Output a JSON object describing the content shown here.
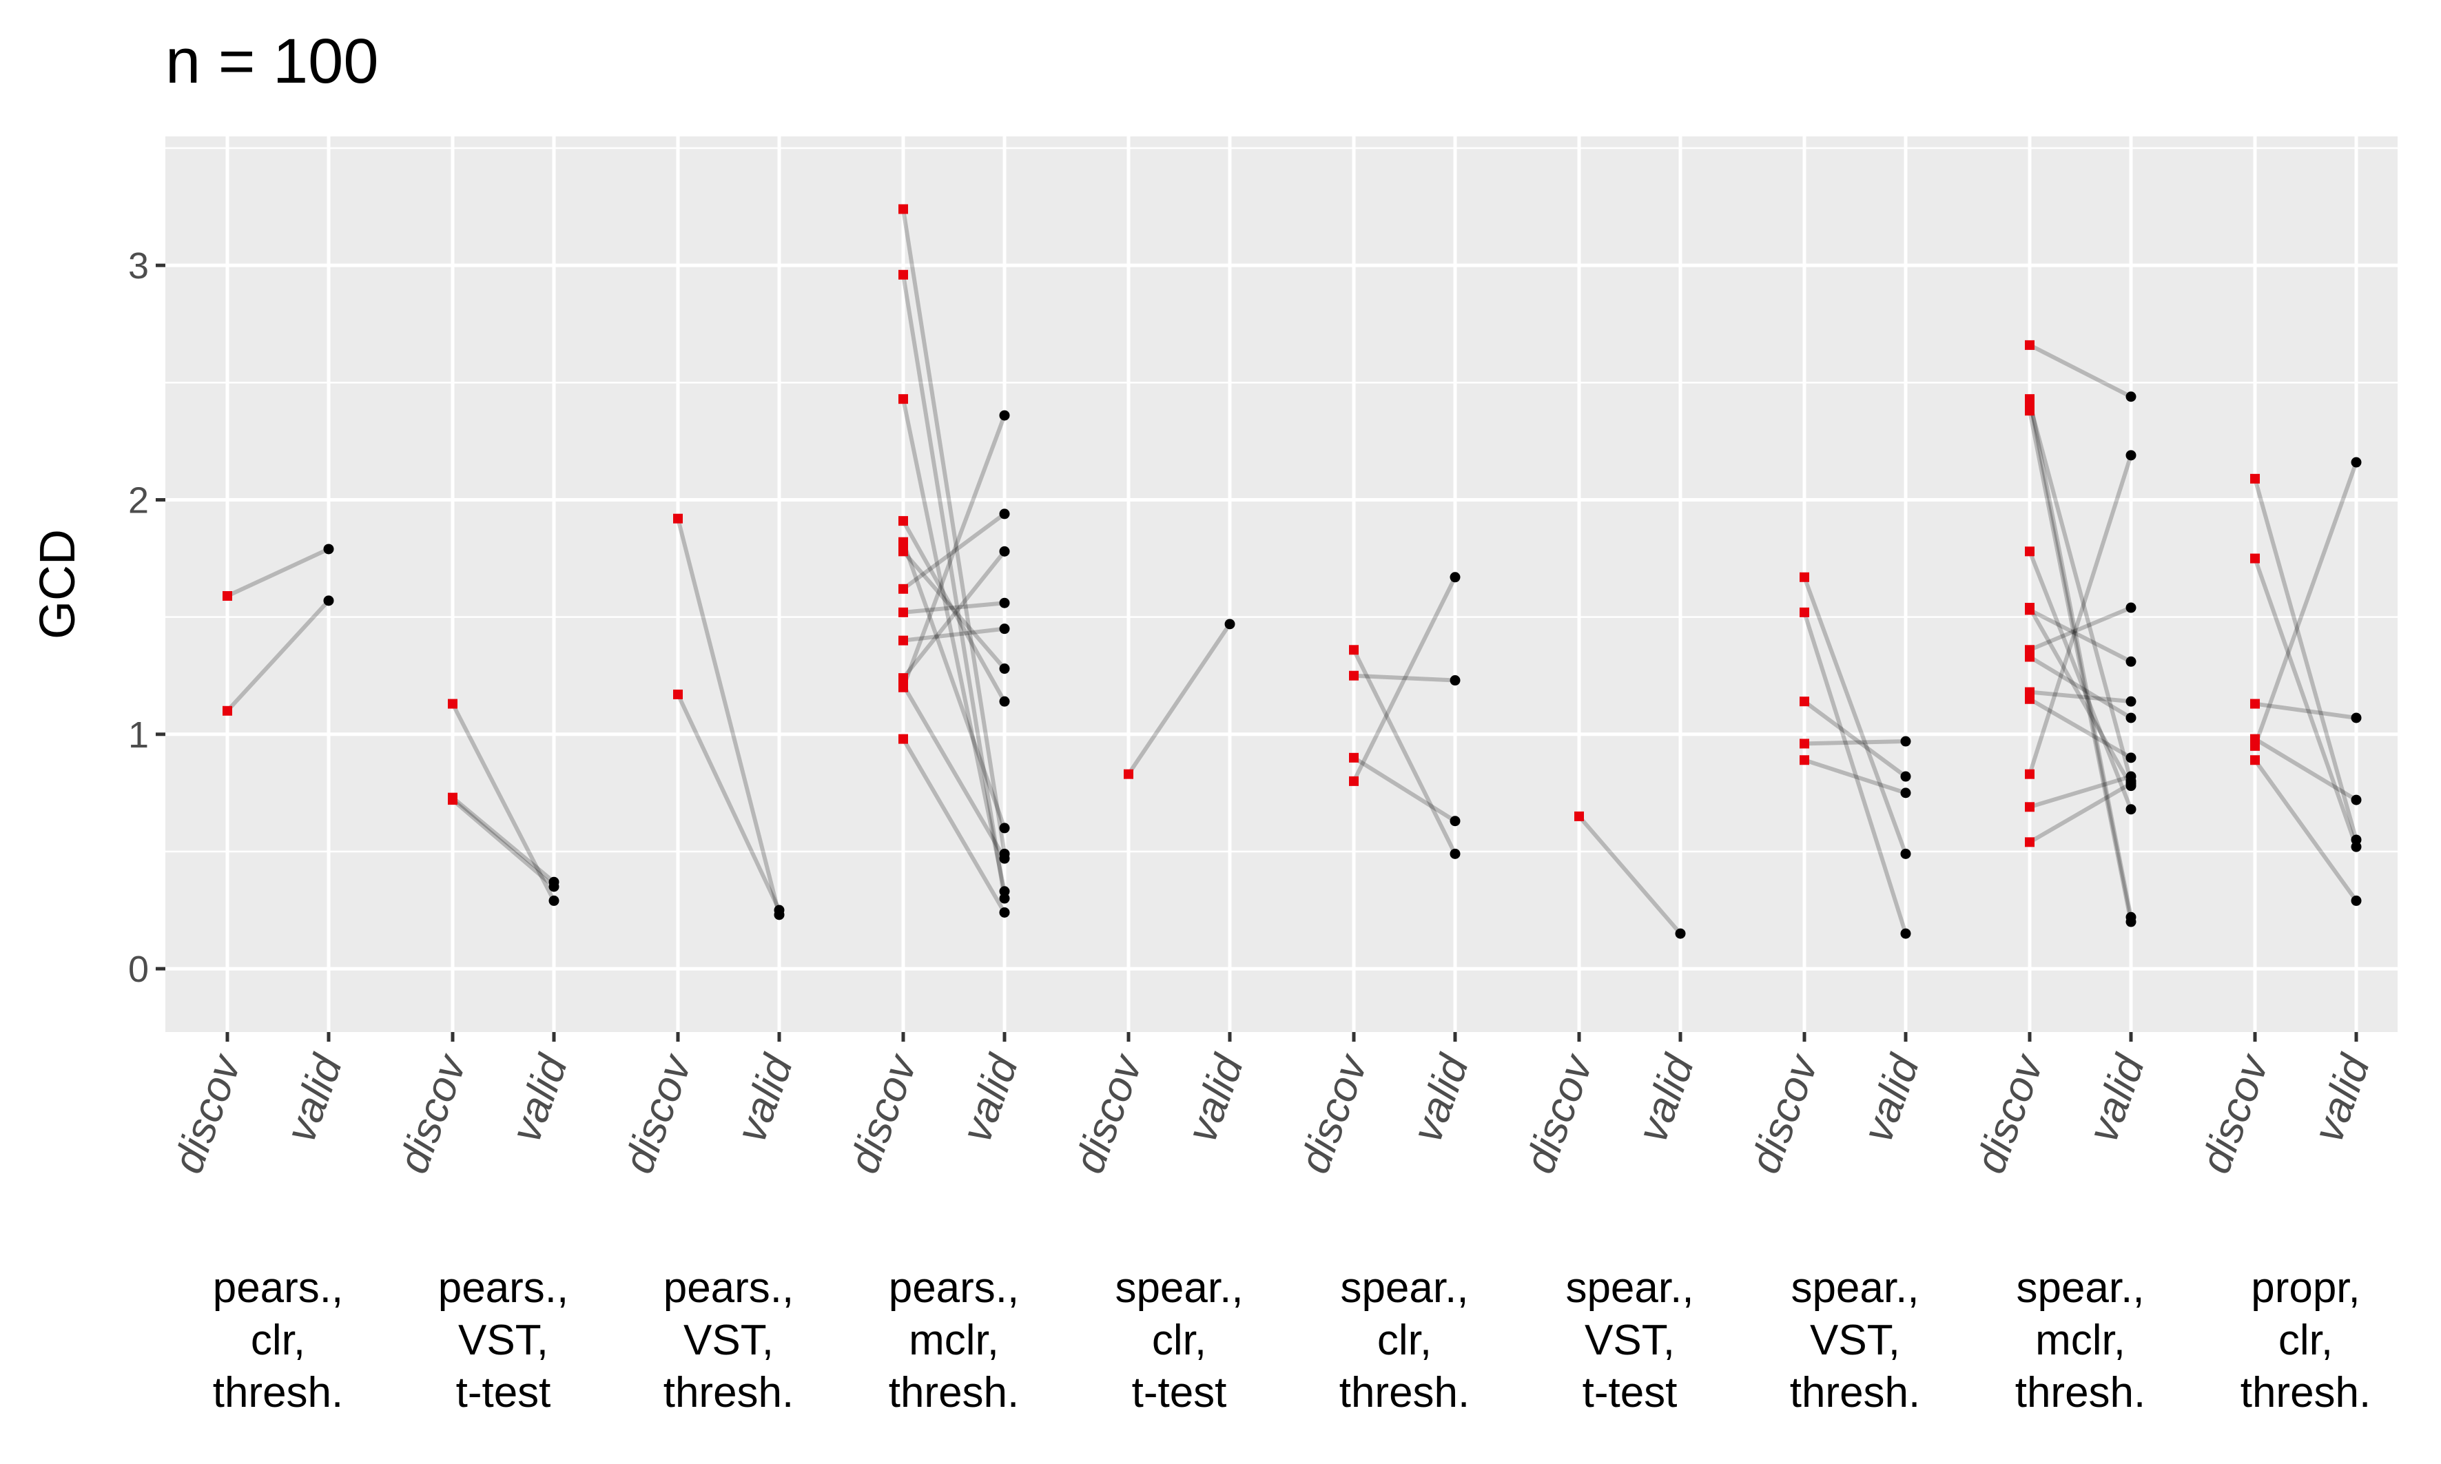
{
  "chart_data": {
    "type": "scatter",
    "title": "n = 100",
    "ylabel": "GCD",
    "xlabel": "",
    "ylim": [
      -0.27,
      3.55
    ],
    "y_ticks": [
      "0",
      "1",
      "2",
      "3"
    ],
    "grid": true,
    "point_colors": {
      "discov": "#e8000b",
      "valid": "#000000"
    },
    "groups": [
      {
        "label": [
          "pears.,",
          "clr,",
          "thresh."
        ],
        "x_ticks": [
          "discov",
          "valid"
        ],
        "pairs": [
          [
            1.59,
            1.79
          ],
          [
            1.1,
            1.57
          ]
        ]
      },
      {
        "label": [
          "pears.,",
          "VST,",
          "t-test"
        ],
        "x_ticks": [
          "discov",
          "valid"
        ],
        "pairs": [
          [
            1.13,
            0.29
          ],
          [
            0.73,
            0.37
          ],
          [
            0.72,
            0.35
          ]
        ]
      },
      {
        "label": [
          "pears.,",
          "VST,",
          "thresh."
        ],
        "x_ticks": [
          "discov",
          "valid"
        ],
        "pairs": [
          [
            1.92,
            0.23
          ],
          [
            1.17,
            0.25
          ]
        ]
      },
      {
        "label": [
          "pears.,",
          "mclr,",
          "thresh."
        ],
        "x_ticks": [
          "discov",
          "valid"
        ],
        "pairs": [
          [
            3.24,
            0.49
          ],
          [
            2.96,
            0.3
          ],
          [
            2.43,
            0.33
          ],
          [
            1.91,
            1.14
          ],
          [
            1.82,
            0.6
          ],
          [
            1.78,
            1.28
          ],
          [
            1.62,
            1.94
          ],
          [
            1.52,
            1.56
          ],
          [
            1.4,
            1.45
          ],
          [
            1.24,
            1.78
          ],
          [
            1.21,
            0.47
          ],
          [
            1.2,
            2.36
          ],
          [
            0.98,
            0.24
          ]
        ]
      },
      {
        "label": [
          "spear.,",
          "clr,",
          "t-test"
        ],
        "x_ticks": [
          "discov",
          "valid"
        ],
        "pairs": [
          [
            0.83,
            1.47
          ]
        ]
      },
      {
        "label": [
          "spear.,",
          "clr,",
          "thresh."
        ],
        "x_ticks": [
          "discov",
          "valid"
        ],
        "pairs": [
          [
            1.36,
            0.49
          ],
          [
            1.25,
            1.23
          ],
          [
            0.9,
            0.63
          ],
          [
            0.8,
            1.67
          ]
        ]
      },
      {
        "label": [
          "spear.,",
          "VST,",
          "t-test"
        ],
        "x_ticks": [
          "discov",
          "valid"
        ],
        "pairs": [
          [
            0.65,
            0.15
          ]
        ]
      },
      {
        "label": [
          "spear.,",
          "VST,",
          "thresh."
        ],
        "x_ticks": [
          "discov",
          "valid"
        ],
        "pairs": [
          [
            1.67,
            0.49
          ],
          [
            1.52,
            0.15
          ],
          [
            1.14,
            0.82
          ],
          [
            0.96,
            0.97
          ],
          [
            0.89,
            0.75
          ]
        ]
      },
      {
        "label": [
          "spear.,",
          "mclr,",
          "thresh."
        ],
        "x_ticks": [
          "discov",
          "valid"
        ],
        "pairs": [
          [
            2.66,
            2.44
          ],
          [
            2.43,
            0.22
          ],
          [
            2.41,
            0.8
          ],
          [
            2.38,
            0.2
          ],
          [
            1.78,
            0.68
          ],
          [
            1.54,
            0.78
          ],
          [
            1.53,
            1.31
          ],
          [
            1.36,
            1.54
          ],
          [
            1.33,
            1.07
          ],
          [
            1.18,
            1.14
          ],
          [
            1.15,
            0.9
          ],
          [
            0.83,
            2.19
          ],
          [
            0.69,
            0.82
          ],
          [
            0.54,
            0.79
          ]
        ]
      },
      {
        "label": [
          "propr,",
          "clr,",
          "thresh."
        ],
        "x_ticks": [
          "discov",
          "valid"
        ],
        "pairs": [
          [
            2.09,
            0.55
          ],
          [
            1.75,
            0.52
          ],
          [
            1.13,
            1.07
          ],
          [
            0.98,
            0.72
          ],
          [
            0.95,
            2.16
          ],
          [
            0.89,
            0.29
          ]
        ]
      }
    ]
  }
}
